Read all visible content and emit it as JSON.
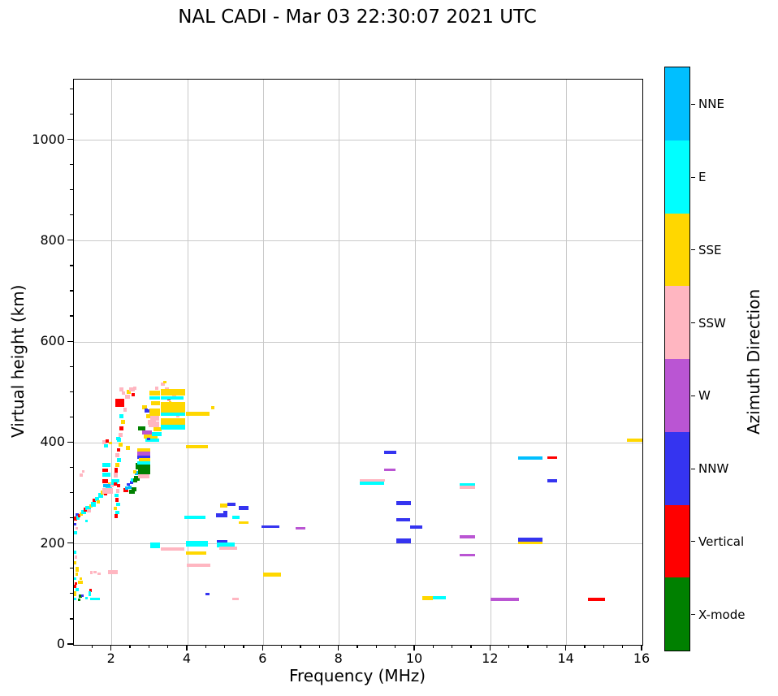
{
  "title": "NAL CADI - Mar 03 22:30:07 2021 UTC",
  "axes": {
    "xlabel": "Frequency (MHz)",
    "ylabel": "Virtual height (km)",
    "x_ticks": [
      2,
      4,
      6,
      8,
      10,
      12,
      14,
      16
    ],
    "y_ticks": [
      0,
      200,
      400,
      600,
      800,
      1000
    ],
    "xlim": [
      1,
      16
    ],
    "ylim": [
      0,
      1120
    ],
    "grid": true
  },
  "colorbar": {
    "label": "Azimuth Direction",
    "entries": [
      {
        "label": "NNE",
        "color": "#00BFFF"
      },
      {
        "label": "E",
        "color": "#00FFFF"
      },
      {
        "label": "SSE",
        "color": "#FFD700"
      },
      {
        "label": "SSW",
        "color": "#FFB6C1"
      },
      {
        "label": "W",
        "color": "#BA55D3"
      },
      {
        "label": "NNW",
        "color": "#3534F0"
      },
      {
        "label": "Vertical",
        "color": "#FF0000"
      },
      {
        "label": "X-mode",
        "color": "#008000"
      }
    ]
  },
  "chart_data": {
    "type": "scatter",
    "title": "NAL CADI - Mar 03 22:30:07 2021 UTC",
    "xlabel": "Frequency (MHz)",
    "ylabel": "Virtual height (km)",
    "xlim": [
      1,
      16
    ],
    "ylim": [
      0,
      1120
    ],
    "legend_position": "right-colorbar",
    "categories": [
      "NNE",
      "E",
      "SSE",
      "SSW",
      "W",
      "NNW",
      "Vertical",
      "X-mode"
    ],
    "point_format": [
      "direction",
      "freq_MHz",
      "height_km",
      "width_MHz",
      "thickness_km"
    ],
    "points": [
      [
        "E",
        1.0,
        183,
        0.07,
        6
      ],
      [
        "SSW",
        1.02,
        174,
        0.07,
        6
      ],
      [
        "SSE",
        1.0,
        163,
        0.07,
        6
      ],
      [
        "SSE",
        1.04,
        150,
        0.09,
        9
      ],
      [
        "SSE",
        1.04,
        140,
        0.07,
        6
      ],
      [
        "E",
        1.0,
        131,
        0.07,
        6
      ],
      [
        "SSE",
        1.1,
        124,
        0.14,
        6
      ],
      [
        "Vertical",
        1.0,
        116,
        0.07,
        6
      ],
      [
        "E",
        1.05,
        109,
        0.07,
        6
      ],
      [
        "SSE",
        1.0,
        101,
        0.07,
        9
      ],
      [
        "X-mode",
        1.12,
        97,
        0.09,
        6
      ],
      [
        "E",
        1.0,
        91,
        0.07,
        6
      ],
      [
        "NNW",
        1.2,
        97,
        0.06,
        5
      ],
      [
        "Vertical",
        1.4,
        108,
        0.07,
        7
      ],
      [
        "E",
        1.39,
        101,
        0.07,
        9
      ],
      [
        "E",
        1.42,
        91,
        0.24,
        6
      ],
      [
        "E",
        1.6,
        91,
        0.09,
        5
      ],
      [
        "X-mode",
        1.1,
        90,
        0.07,
        5
      ],
      [
        "SSW",
        1.42,
        143,
        0.07,
        6
      ],
      [
        "SSW",
        1.52,
        144,
        0.07,
        6
      ],
      [
        "SSW",
        1.63,
        141,
        0.07,
        6
      ],
      [
        "SSW",
        1.9,
        144,
        0.12,
        7
      ],
      [
        "SSW",
        2.02,
        144,
        0.14,
        8
      ],
      [
        "SSE",
        1.15,
        131,
        0.06,
        5
      ],
      [
        "Vertical",
        1.02,
        122,
        0.06,
        5
      ],
      [
        "E",
        1.3,
        93,
        0.07,
        5
      ],
      [
        "E",
        1.0,
        222,
        0.08,
        6
      ],
      [
        "SSW",
        1.04,
        231,
        0.07,
        6
      ],
      [
        "NNW",
        1.0,
        239,
        0.07,
        6
      ],
      [
        "Vertical",
        1.0,
        251,
        0.08,
        8
      ],
      [
        "NNW",
        1.04,
        257,
        0.08,
        6
      ],
      [
        "E",
        1.06,
        252,
        0.1,
        7
      ],
      [
        "Vertical",
        1.1,
        256,
        0.08,
        7
      ],
      [
        "SSE",
        1.15,
        259,
        0.08,
        6
      ],
      [
        "E",
        1.2,
        263,
        0.12,
        9
      ],
      [
        "Vertical",
        1.25,
        268,
        0.09,
        7
      ],
      [
        "E",
        1.3,
        271,
        0.14,
        9
      ],
      [
        "SSW",
        1.35,
        266,
        0.09,
        6
      ],
      [
        "SSE",
        1.4,
        275,
        0.09,
        7
      ],
      [
        "E",
        1.44,
        279,
        0.14,
        10
      ],
      [
        "Vertical",
        1.5,
        286,
        0.08,
        7
      ],
      [
        "E",
        1.55,
        289,
        0.12,
        9
      ],
      [
        "SSE",
        1.6,
        283,
        0.09,
        6
      ],
      [
        "E",
        1.64,
        296,
        0.14,
        10
      ],
      [
        "SSE",
        1.7,
        301,
        0.11,
        8
      ],
      [
        "E",
        1.74,
        306,
        0.14,
        10
      ],
      [
        "Vertical",
        1.8,
        299,
        0.08,
        7
      ],
      [
        "E",
        1.83,
        311,
        0.18,
        11
      ],
      [
        "SSE",
        1.9,
        319,
        0.09,
        7
      ],
      [
        "SSW",
        1.94,
        316,
        0.1,
        8
      ],
      [
        "E",
        1.98,
        323,
        0.18,
        11
      ],
      [
        "Vertical",
        2.04,
        319,
        0.09,
        7
      ],
      [
        "E",
        1.3,
        245,
        0.07,
        5
      ],
      [
        "SSW",
        1.76,
        305,
        0.26,
        11
      ],
      [
        "E",
        1.76,
        356,
        0.2,
        8
      ],
      [
        "Vertical",
        1.76,
        346,
        0.15,
        7
      ],
      [
        "E",
        1.76,
        337,
        0.2,
        8
      ],
      [
        "Vertical",
        1.74,
        325,
        0.15,
        8
      ],
      [
        "NNE",
        1.78,
        315,
        0.18,
        7
      ],
      [
        "SSW",
        1.74,
        402,
        0.12,
        8
      ],
      [
        "Vertical",
        1.84,
        404,
        0.08,
        6
      ],
      [
        "SSE",
        1.92,
        400,
        0.08,
        6
      ],
      [
        "E",
        1.8,
        394,
        0.1,
        6
      ],
      [
        "SSW",
        1.15,
        336,
        0.09,
        6
      ],
      [
        "SSW",
        1.21,
        343,
        0.07,
        5
      ],
      [
        "SSW",
        2.05,
        336,
        0.1,
        9
      ],
      [
        "Vertical",
        2.08,
        346,
        0.08,
        9
      ],
      [
        "SSE",
        2.1,
        356,
        0.1,
        8
      ],
      [
        "E",
        2.14,
        366,
        0.1,
        8
      ],
      [
        "SSW",
        2.1,
        376,
        0.1,
        8
      ],
      [
        "Vertical",
        2.14,
        386,
        0.08,
        7
      ],
      [
        "SSE",
        2.18,
        396,
        0.1,
        8
      ],
      [
        "E",
        2.14,
        406,
        0.1,
        8
      ],
      [
        "SSW",
        2.18,
        416,
        0.1,
        8
      ],
      [
        "Vertical",
        2.2,
        429,
        0.1,
        9
      ],
      [
        "SSE",
        2.24,
        441,
        0.1,
        8
      ],
      [
        "E",
        2.2,
        453,
        0.1,
        8
      ],
      [
        "Vertical",
        2.1,
        480,
        0.22,
        16
      ],
      [
        "SSW",
        2.3,
        466,
        0.1,
        8
      ],
      [
        "SSW",
        2.36,
        491,
        0.12,
        8
      ],
      [
        "SSE",
        2.4,
        501,
        0.1,
        7
      ],
      [
        "SSW",
        2.46,
        506,
        0.14,
        8
      ],
      [
        "Vertical",
        2.52,
        496,
        0.08,
        6
      ],
      [
        "SSW",
        2.56,
        509,
        0.1,
        6
      ],
      [
        "E",
        2.12,
        409,
        0.1,
        6
      ],
      [
        "SSE",
        2.38,
        390,
        0.1,
        7
      ],
      [
        "Vertical",
        2.08,
        255,
        0.08,
        7
      ],
      [
        "E",
        2.1,
        262,
        0.09,
        7
      ],
      [
        "SSE",
        2.06,
        270,
        0.08,
        6
      ],
      [
        "E",
        2.12,
        278,
        0.1,
        7
      ],
      [
        "Vertical",
        2.1,
        287,
        0.08,
        7
      ],
      [
        "E",
        2.08,
        296,
        0.1,
        7
      ],
      [
        "SSW",
        2.12,
        305,
        0.09,
        7
      ],
      [
        "Vertical",
        2.14,
        315,
        0.08,
        7
      ],
      [
        "E",
        2.1,
        325,
        0.09,
        7
      ],
      [
        "Vertical",
        2.3,
        307,
        0.14,
        8
      ],
      [
        "NNE",
        2.36,
        311,
        0.08,
        6
      ],
      [
        "NNW",
        2.4,
        318,
        0.08,
        6
      ],
      [
        "NNE",
        2.44,
        312,
        0.08,
        6
      ],
      [
        "X-mode",
        2.45,
        303,
        0.15,
        9
      ],
      [
        "X-mode",
        2.52,
        308,
        0.12,
        8
      ],
      [
        "NNW",
        2.48,
        322,
        0.08,
        6
      ],
      [
        "E",
        2.5,
        327,
        0.1,
        7
      ],
      [
        "X-mode",
        2.56,
        326,
        0.12,
        9
      ],
      [
        "NNE",
        2.6,
        341,
        0.1,
        8
      ],
      [
        "X-mode",
        2.62,
        354,
        0.14,
        12
      ],
      [
        "SSE",
        2.56,
        343,
        0.09,
        6
      ],
      [
        "Vertical",
        2.74,
        361,
        0.09,
        8
      ],
      [
        "X-mode",
        2.58,
        330,
        0.15,
        10
      ],
      [
        "SSE",
        2.67,
        386,
        0.34,
        7
      ],
      [
        "W",
        2.67,
        379,
        0.34,
        7
      ],
      [
        "NNW",
        2.67,
        372,
        0.34,
        7
      ],
      [
        "SSE",
        2.72,
        366,
        0.3,
        7
      ],
      [
        "E",
        2.67,
        360,
        0.34,
        7
      ],
      [
        "X-mode",
        2.7,
        347,
        0.32,
        19
      ],
      [
        "SSW",
        2.7,
        334,
        0.3,
        7
      ],
      [
        "SSE",
        2.8,
        471,
        0.12,
        8
      ],
      [
        "NNW",
        2.86,
        463,
        0.14,
        7
      ],
      [
        "SSE",
        2.9,
        453,
        0.14,
        8
      ],
      [
        "SSW",
        2.94,
        441,
        0.22,
        10
      ],
      [
        "X-mode",
        2.7,
        429,
        0.18,
        9
      ],
      [
        "W",
        2.8,
        421,
        0.26,
        7
      ],
      [
        "SSE",
        2.84,
        413,
        0.36,
        8
      ],
      [
        "E",
        2.88,
        406,
        0.36,
        7
      ],
      [
        "SSE",
        3.0,
        499,
        0.28,
        9
      ],
      [
        "E",
        3.0,
        489,
        0.28,
        7
      ],
      [
        "SSE",
        3.04,
        479,
        0.24,
        9
      ],
      [
        "SSE",
        3.0,
        461,
        0.28,
        13
      ],
      [
        "SSW",
        3.02,
        449,
        0.22,
        9
      ],
      [
        "SSW",
        2.98,
        437,
        0.26,
        11
      ],
      [
        "SSE",
        3.1,
        428,
        0.22,
        8
      ],
      [
        "E",
        3.06,
        418,
        0.26,
        8
      ],
      [
        "SSW",
        2.2,
        506,
        0.1,
        7
      ],
      [
        "SSW",
        2.26,
        499,
        0.09,
        6
      ],
      [
        "NNW",
        2.86,
        466,
        0.1,
        5
      ],
      [
        "NNW",
        2.92,
        408,
        0.1,
        6
      ],
      [
        "SSW",
        3.4,
        506,
        0.11,
        7
      ],
      [
        "SSW",
        3.56,
        503,
        0.09,
        6
      ],
      [
        "Vertical",
        3.46,
        489,
        0.09,
        8
      ],
      [
        "SSW",
        3.6,
        491,
        0.09,
        6
      ],
      [
        "SSE",
        3.5,
        479,
        0.08,
        6
      ],
      [
        "SSW",
        3.66,
        471,
        0.11,
        6
      ],
      [
        "Vertical",
        3.36,
        461,
        0.08,
        6
      ],
      [
        "SSW",
        3.7,
        453,
        0.09,
        6
      ],
      [
        "NNW",
        3.8,
        470,
        0.09,
        6
      ],
      [
        "SSW",
        3.3,
        517,
        0.1,
        6
      ],
      [
        "SSE",
        3.36,
        520,
        0.08,
        5
      ],
      [
        "SSW",
        3.14,
        509,
        0.09,
        6
      ],
      [
        "SSE",
        3.3,
        500,
        0.64,
        13
      ],
      [
        "E",
        3.3,
        489,
        0.6,
        7
      ],
      [
        "SSE",
        3.3,
        470,
        0.64,
        21
      ],
      [
        "E",
        3.3,
        457,
        0.64,
        8
      ],
      [
        "SSE",
        3.3,
        441,
        0.64,
        17
      ],
      [
        "E",
        3.3,
        431,
        0.64,
        9
      ],
      [
        "SSE",
        3.95,
        458,
        0.62,
        7
      ],
      [
        "SSE",
        4.62,
        470,
        0.08,
        6
      ],
      [
        "SSE",
        3.95,
        393,
        0.58,
        7
      ],
      [
        "E",
        3.02,
        197,
        0.26,
        10
      ],
      [
        "SSW",
        3.3,
        190,
        0.62,
        6
      ],
      [
        "E",
        3.95,
        201,
        0.58,
        11
      ],
      [
        "SSE",
        3.95,
        182,
        0.55,
        7
      ],
      [
        "SSW",
        3.98,
        158,
        0.62,
        6
      ],
      [
        "NNW",
        4.78,
        204,
        0.26,
        6
      ],
      [
        "E",
        4.78,
        198,
        0.46,
        9
      ],
      [
        "SSW",
        4.84,
        191,
        0.46,
        6
      ],
      [
        "E",
        3.92,
        253,
        0.55,
        6
      ],
      [
        "E",
        5.18,
        253,
        0.2,
        6
      ],
      [
        "NNW",
        4.74,
        257,
        0.3,
        8
      ],
      [
        "SSE",
        4.86,
        276,
        0.18,
        8
      ],
      [
        "NNW",
        5.06,
        278,
        0.2,
        6
      ],
      [
        "NNW",
        5.34,
        271,
        0.26,
        9
      ],
      [
        "SSE",
        5.34,
        242,
        0.26,
        6
      ],
      [
        "NNW",
        4.95,
        263,
        0.1,
        6
      ],
      [
        "NNW",
        4.48,
        100,
        0.09,
        5
      ],
      [
        "SSW",
        5.18,
        91,
        0.17,
        5
      ],
      [
        "NNW",
        5.95,
        234,
        0.48,
        6
      ],
      [
        "W",
        6.86,
        231,
        0.24,
        6
      ],
      [
        "SSE",
        6.0,
        139,
        0.46,
        7
      ],
      [
        "SSW",
        8.55,
        326,
        0.66,
        6
      ],
      [
        "E",
        8.55,
        320,
        0.64,
        7
      ],
      [
        "NNW",
        9.18,
        381,
        0.32,
        6
      ],
      [
        "W",
        9.18,
        347,
        0.3,
        6
      ],
      [
        "NNW",
        9.5,
        281,
        0.4,
        9
      ],
      [
        "NNW",
        9.5,
        248,
        0.38,
        6
      ],
      [
        "NNW",
        9.88,
        233,
        0.32,
        6
      ],
      [
        "NNW",
        9.5,
        206,
        0.4,
        9
      ],
      [
        "SSE",
        10.2,
        92,
        0.28,
        8
      ],
      [
        "E",
        10.48,
        93,
        0.34,
        6
      ],
      [
        "E",
        11.18,
        318,
        0.4,
        6
      ],
      [
        "SSW",
        11.18,
        312,
        0.4,
        6
      ],
      [
        "W",
        11.18,
        214,
        0.4,
        6
      ],
      [
        "W",
        11.18,
        178,
        0.4,
        5
      ],
      [
        "W",
        12.0,
        90,
        0.74,
        6
      ],
      [
        "NNE",
        12.73,
        370,
        0.64,
        6
      ],
      [
        "Vertical",
        13.5,
        371,
        0.26,
        5
      ],
      [
        "NNW",
        13.5,
        325,
        0.26,
        6
      ],
      [
        "NNW",
        12.73,
        208,
        0.64,
        8
      ],
      [
        "SSE",
        12.73,
        202,
        0.64,
        5
      ],
      [
        "Vertical",
        14.56,
        90,
        0.46,
        6
      ],
      [
        "SSE",
        15.6,
        406,
        0.4,
        7
      ]
    ]
  }
}
